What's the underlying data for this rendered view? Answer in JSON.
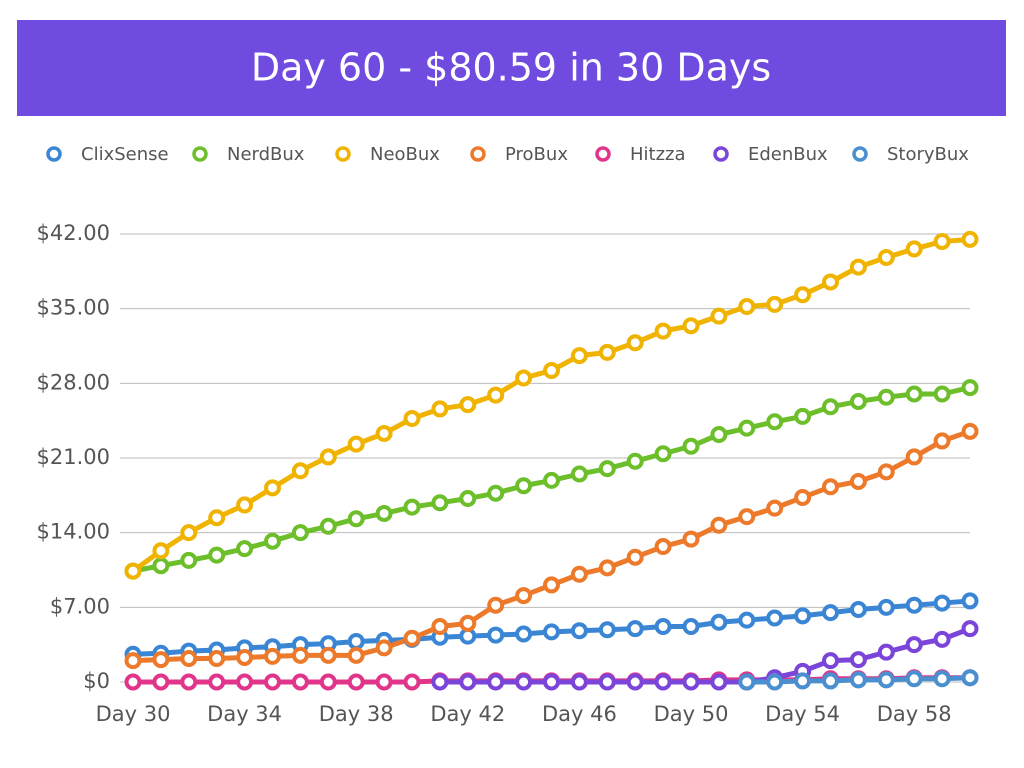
{
  "chart_data": {
    "type": "line",
    "title": "Day 60 - $80.59 in 30 Days",
    "categories": [
      "Day 30",
      null,
      null,
      null,
      "Day 34",
      null,
      null,
      null,
      "Day 38",
      null,
      null,
      null,
      "Day 42",
      null,
      null,
      null,
      "Day 46",
      null,
      null,
      null,
      "Day 50",
      null,
      null,
      null,
      "Day 54",
      null,
      null,
      null,
      "Day 58",
      null,
      null
    ],
    "ylim": [
      0,
      42
    ],
    "yticks": [
      {
        "value": 0,
        "label": "$0"
      },
      {
        "value": 7,
        "label": "$7.00"
      },
      {
        "value": 14,
        "label": "$14.00"
      },
      {
        "value": 21,
        "label": "$21.00"
      },
      {
        "value": 28,
        "label": "$28.00"
      },
      {
        "value": 35,
        "label": "$35.00"
      },
      {
        "value": 42,
        "label": "$42.00"
      }
    ],
    "grid": true,
    "legend": "top",
    "series": [
      {
        "name": "ClixSense",
        "color": "#3b86d4",
        "values": [
          2.6,
          2.7,
          2.9,
          3.0,
          3.2,
          3.3,
          3.5,
          3.6,
          3.8,
          3.9,
          4.0,
          4.2,
          4.3,
          4.4,
          4.5,
          4.7,
          4.8,
          4.9,
          5.0,
          5.2,
          5.2,
          5.6,
          5.8,
          6.0,
          6.2,
          6.5,
          6.8,
          7.0,
          7.2,
          7.4,
          7.6
        ]
      },
      {
        "name": "NerdBux",
        "color": "#6cbf2a",
        "values": [
          10.4,
          10.9,
          11.4,
          11.9,
          12.5,
          13.2,
          14.0,
          14.6,
          15.3,
          15.8,
          16.4,
          16.8,
          17.2,
          17.7,
          18.4,
          18.9,
          19.5,
          20.0,
          20.7,
          21.4,
          22.1,
          23.2,
          23.8,
          24.4,
          24.9,
          25.8,
          26.3,
          26.7,
          27.0,
          27.0,
          27.6
        ]
      },
      {
        "name": "NeoBux",
        "color": "#f0b400",
        "values": [
          10.4,
          12.3,
          14.0,
          15.4,
          16.6,
          18.2,
          19.8,
          21.1,
          22.3,
          23.3,
          24.7,
          25.6,
          26.0,
          26.9,
          28.5,
          29.2,
          30.6,
          30.9,
          31.8,
          32.9,
          33.4,
          34.3,
          35.2,
          35.4,
          36.3,
          37.5,
          38.9,
          39.8,
          40.6,
          41.3,
          41.5
        ]
      },
      {
        "name": "ProBux",
        "color": "#ec7a2a",
        "values": [
          2.0,
          2.1,
          2.2,
          2.2,
          2.3,
          2.4,
          2.5,
          2.5,
          2.5,
          3.2,
          4.1,
          5.2,
          5.5,
          7.2,
          8.1,
          9.1,
          10.1,
          10.7,
          11.7,
          12.7,
          13.4,
          14.7,
          15.5,
          16.3,
          17.3,
          18.3,
          18.8,
          19.7,
          21.1,
          22.6,
          23.5
        ]
      },
      {
        "name": "Hitzza",
        "color": "#e0358a",
        "values": [
          0,
          0,
          0,
          0,
          0,
          0,
          0,
          0,
          0,
          0,
          0,
          0.1,
          0.1,
          0.1,
          0.1,
          0.1,
          0.1,
          0.1,
          0.1,
          0.1,
          0.1,
          0.2,
          0.2,
          0.2,
          0.2,
          0.3,
          0.3,
          0.3,
          0.4,
          0.4,
          0.4
        ]
      },
      {
        "name": "EdenBux",
        "color": "#7a45d8",
        "values": [
          null,
          null,
          null,
          null,
          null,
          null,
          null,
          null,
          null,
          null,
          null,
          0,
          0,
          0,
          0,
          0,
          0,
          0,
          0,
          0,
          0,
          0,
          0,
          0.4,
          1.0,
          2.0,
          2.1,
          2.8,
          3.5,
          4.0,
          5.0
        ]
      },
      {
        "name": "StoryBux",
        "color": "#4a90d0",
        "values": [
          null,
          null,
          null,
          null,
          null,
          null,
          null,
          null,
          null,
          null,
          null,
          null,
          null,
          null,
          null,
          null,
          null,
          null,
          null,
          null,
          null,
          null,
          0,
          0,
          0.1,
          0.1,
          0.2,
          0.2,
          0.3,
          0.3,
          0.4
        ]
      }
    ]
  }
}
